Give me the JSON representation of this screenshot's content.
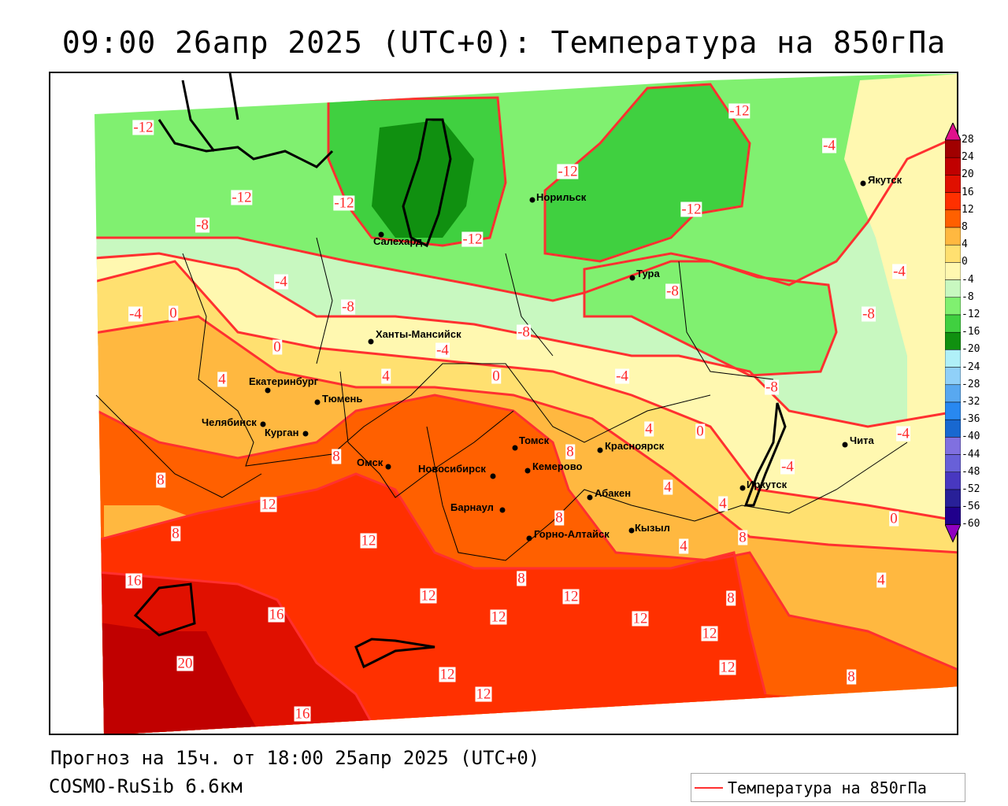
{
  "title": "09:00 26апр 2025 (UTC+0): Температура на 850гПа",
  "footer": {
    "forecast": "Прогноз на 15ч. от 18:00 25апр 2025 (UTC+0)",
    "model": "COSMO-RuSib 6.6км"
  },
  "legend": {
    "label": "Температура на 850гПа",
    "line_color": "#ff3030"
  },
  "colorbar": {
    "ticks": [
      "28",
      "24",
      "20",
      "16",
      "12",
      "8",
      "4",
      "0",
      "-4",
      "-8",
      "-12",
      "-16",
      "-20",
      "-24",
      "-28",
      "-32",
      "-36",
      "-40",
      "-44",
      "-48",
      "-52",
      "-56",
      "-60"
    ],
    "colors": [
      "#a00000",
      "#c00000",
      "#e01000",
      "#ff3000",
      "#ff6000",
      "#ffb840",
      "#ffe070",
      "#fff8b0",
      "#c8f8c0",
      "#80f070",
      "#40d040",
      "#109010",
      "#b0f0f8",
      "#90d0f8",
      "#58a8f0",
      "#2888f0",
      "#1868d0",
      "#8070e0",
      "#6860d8",
      "#4838c0",
      "#282098",
      "#20008c"
    ],
    "over_color": "#e0108c",
    "under_color": "#9000c0"
  },
  "cities": [
    "Салехард",
    "Норильск",
    "Тура",
    "Якутск",
    "Ханты-Мансийск",
    "Екатеринбург",
    "Тюмень",
    "Челябинск",
    "Курган",
    "Омск",
    "Новосибирск",
    "Томск",
    "Кемерово",
    "Красноярск",
    "Барнаул",
    "Абакен",
    "Горно-Алтайск",
    "Кызыл",
    "Иркутск",
    "Чита"
  ],
  "contour_labels": [
    "-12",
    "-12",
    "-12",
    "-8",
    "-4",
    "-4",
    "0",
    "0",
    "4",
    "4",
    "-8",
    "-4",
    "-8",
    "0",
    "-4",
    "-12",
    "-12",
    "-12",
    "-12",
    "-8",
    "-4",
    "-4",
    "-8",
    "-8",
    "0",
    "-4",
    "4",
    "-4",
    "8",
    "8",
    "8",
    "12",
    "8",
    "12",
    "4",
    "4",
    "8",
    "4",
    "8",
    "0",
    "4",
    "16",
    "16",
    "12",
    "12",
    "12",
    "12",
    "8",
    "12",
    "12",
    "8",
    "20",
    "12",
    "12",
    "16",
    "8"
  ]
}
